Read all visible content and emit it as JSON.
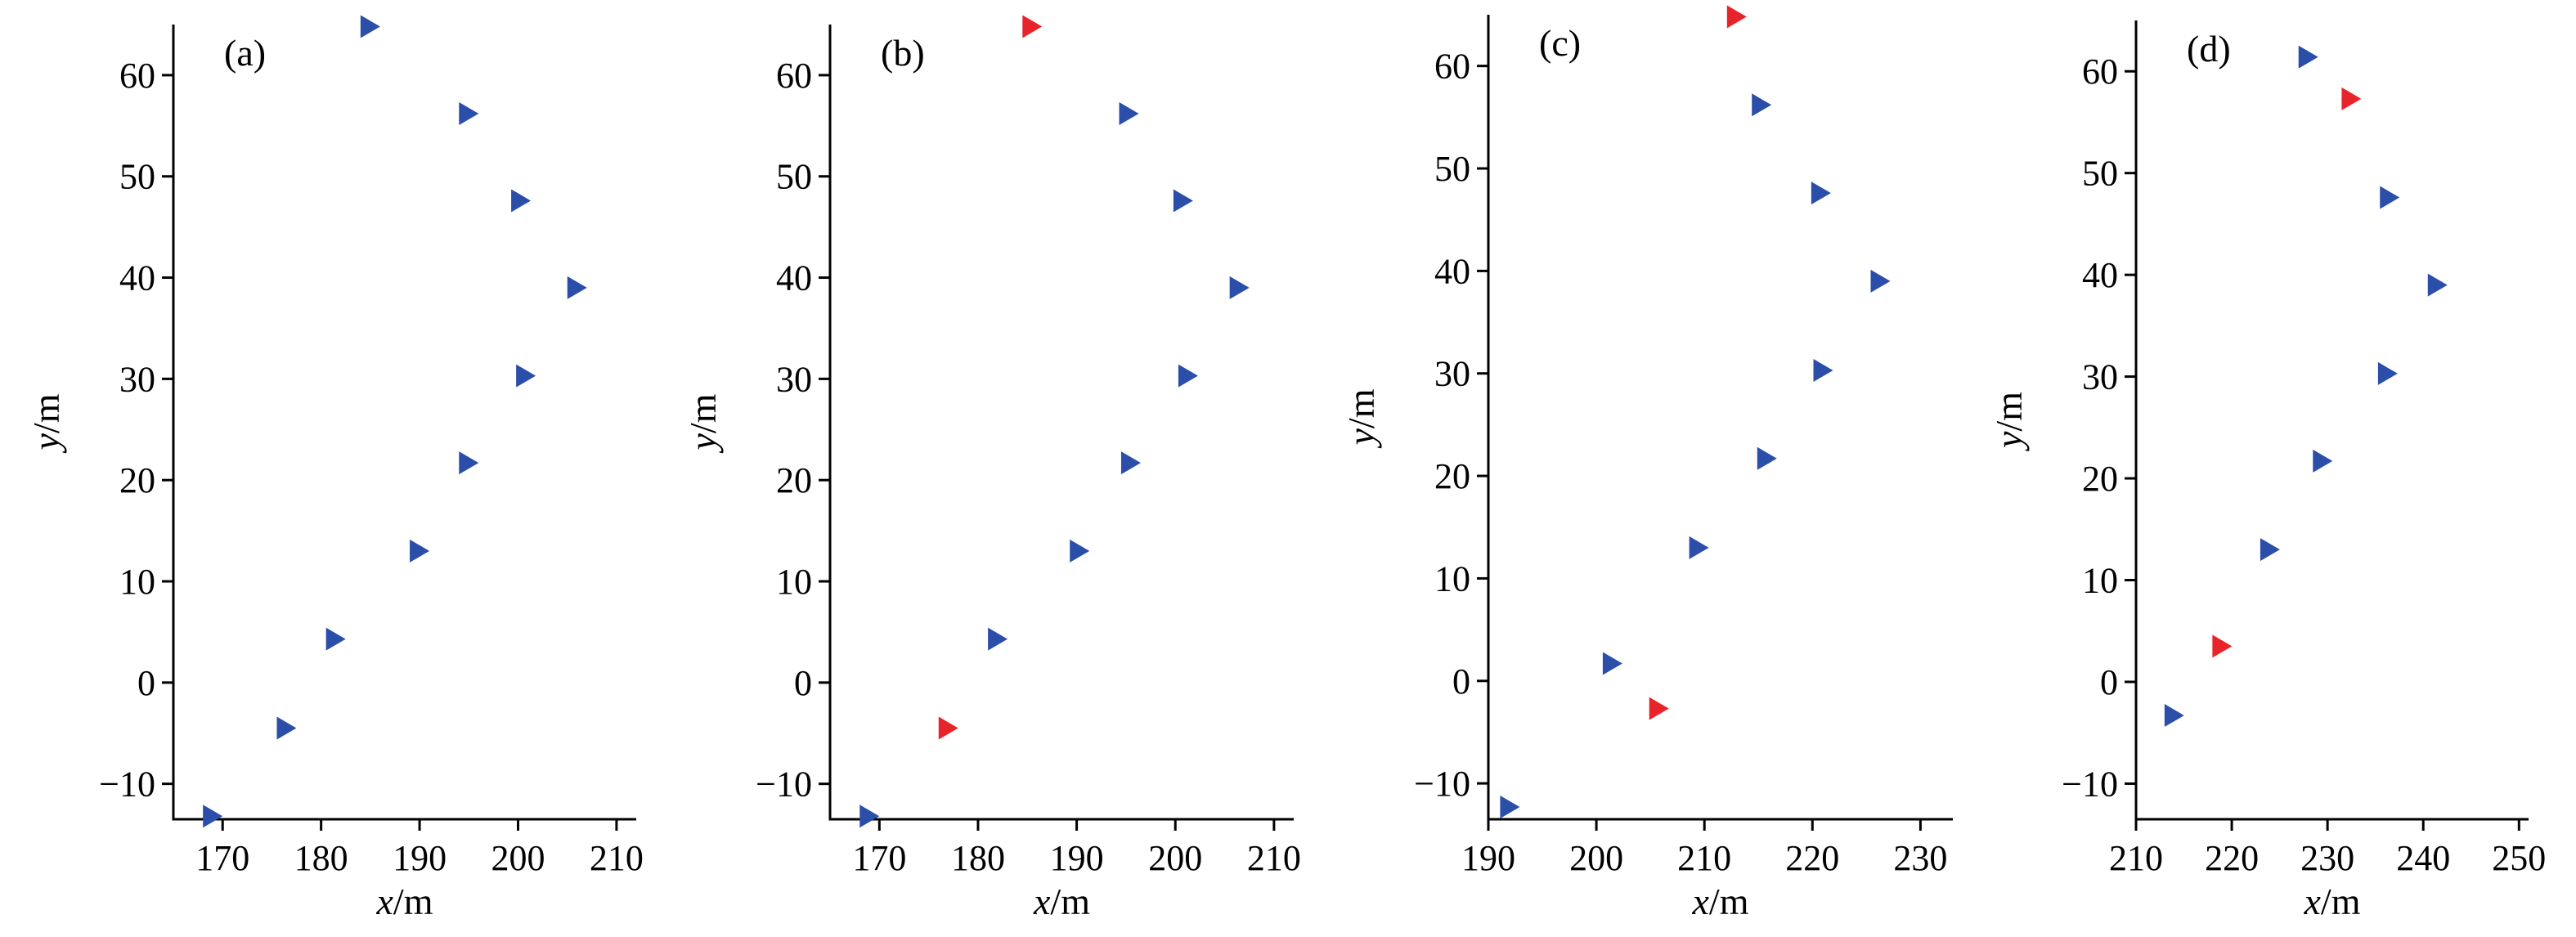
{
  "colors": {
    "normal": "#2b4ea8",
    "highlight": "#e8242b",
    "axis": "#000000"
  },
  "chart_data": [
    {
      "type": "scatter",
      "panel_label": "(a)",
      "xlabel_var": "x",
      "xlabel_unit": "/m",
      "ylabel_var": "y",
      "ylabel_unit": "/m",
      "xlim": [
        165,
        212
      ],
      "ylim": [
        -13.5,
        65
      ],
      "xticks": [
        170,
        180,
        190,
        200,
        210
      ],
      "yticks": [
        -10,
        0,
        10,
        20,
        30,
        40,
        50,
        60
      ],
      "points": [
        {
          "x": 169,
          "y": -13.2,
          "highlight": false
        },
        {
          "x": 176.5,
          "y": -4.5,
          "highlight": false
        },
        {
          "x": 181.5,
          "y": 4.3,
          "highlight": false
        },
        {
          "x": 190,
          "y": 13,
          "highlight": false
        },
        {
          "x": 195,
          "y": 21.7,
          "highlight": false
        },
        {
          "x": 200.8,
          "y": 30.3,
          "highlight": false
        },
        {
          "x": 206,
          "y": 39,
          "highlight": false
        },
        {
          "x": 200.3,
          "y": 47.6,
          "highlight": false
        },
        {
          "x": 195,
          "y": 56.2,
          "highlight": false
        },
        {
          "x": 185,
          "y": 64.8,
          "highlight": false
        }
      ]
    },
    {
      "type": "scatter",
      "panel_label": "(b)",
      "xlabel_var": "x",
      "xlabel_unit": "/m",
      "ylabel_var": "y",
      "ylabel_unit": "/m",
      "xlim": [
        165,
        212
      ],
      "ylim": [
        -13.5,
        65
      ],
      "xticks": [
        170,
        180,
        190,
        200,
        210
      ],
      "yticks": [
        -10,
        0,
        10,
        20,
        30,
        40,
        50,
        60
      ],
      "points": [
        {
          "x": 169,
          "y": -13.2,
          "highlight": false
        },
        {
          "x": 177,
          "y": -4.5,
          "highlight": true
        },
        {
          "x": 182,
          "y": 4.3,
          "highlight": false
        },
        {
          "x": 190.3,
          "y": 13,
          "highlight": false
        },
        {
          "x": 195.5,
          "y": 21.7,
          "highlight": false
        },
        {
          "x": 201.3,
          "y": 30.3,
          "highlight": false
        },
        {
          "x": 206.5,
          "y": 39,
          "highlight": false
        },
        {
          "x": 200.8,
          "y": 47.6,
          "highlight": false
        },
        {
          "x": 195.3,
          "y": 56.2,
          "highlight": false
        },
        {
          "x": 185.5,
          "y": 64.8,
          "highlight": true
        }
      ]
    },
    {
      "type": "scatter",
      "panel_label": "(c)",
      "xlabel_var": "x",
      "xlabel_unit": "/m",
      "ylabel_var": "y",
      "ylabel_unit": "/m",
      "xlim": [
        190,
        233
      ],
      "ylim": [
        -13.5,
        65
      ],
      "xticks": [
        190,
        200,
        210,
        220,
        230
      ],
      "yticks": [
        -10,
        0,
        10,
        20,
        30,
        40,
        50,
        60
      ],
      "points": [
        {
          "x": 192,
          "y": -12.3,
          "highlight": false
        },
        {
          "x": 205.8,
          "y": -2.7,
          "highlight": true
        },
        {
          "x": 201.5,
          "y": 1.7,
          "highlight": false
        },
        {
          "x": 209.5,
          "y": 13,
          "highlight": false
        },
        {
          "x": 215.8,
          "y": 21.7,
          "highlight": false
        },
        {
          "x": 221,
          "y": 30.3,
          "highlight": false
        },
        {
          "x": 226.3,
          "y": 39,
          "highlight": false
        },
        {
          "x": 220.8,
          "y": 47.6,
          "highlight": false
        },
        {
          "x": 215.3,
          "y": 56.2,
          "highlight": false
        },
        {
          "x": 213,
          "y": 64.8,
          "highlight": true
        }
      ]
    },
    {
      "type": "scatter",
      "panel_label": "(d)",
      "xlabel_var": "x",
      "xlabel_unit": "/m",
      "ylabel_var": "y",
      "ylabel_unit": "/m",
      "xlim": [
        210,
        251
      ],
      "ylim": [
        -13.5,
        65
      ],
      "xticks": [
        210,
        220,
        230,
        240,
        250
      ],
      "yticks": [
        -10,
        0,
        10,
        20,
        30,
        40,
        50,
        60
      ],
      "points": [
        {
          "x": 214,
          "y": -3.3,
          "highlight": false
        },
        {
          "x": 219,
          "y": 3.5,
          "highlight": true
        },
        {
          "x": 224,
          "y": 13,
          "highlight": false
        },
        {
          "x": 229.5,
          "y": 21.7,
          "highlight": false
        },
        {
          "x": 236.3,
          "y": 30.3,
          "highlight": false
        },
        {
          "x": 241.5,
          "y": 39,
          "highlight": false
        },
        {
          "x": 236.5,
          "y": 47.6,
          "highlight": false
        },
        {
          "x": 232.5,
          "y": 57.3,
          "highlight": true
        },
        {
          "x": 228,
          "y": 61.4,
          "highlight": false
        }
      ]
    }
  ]
}
